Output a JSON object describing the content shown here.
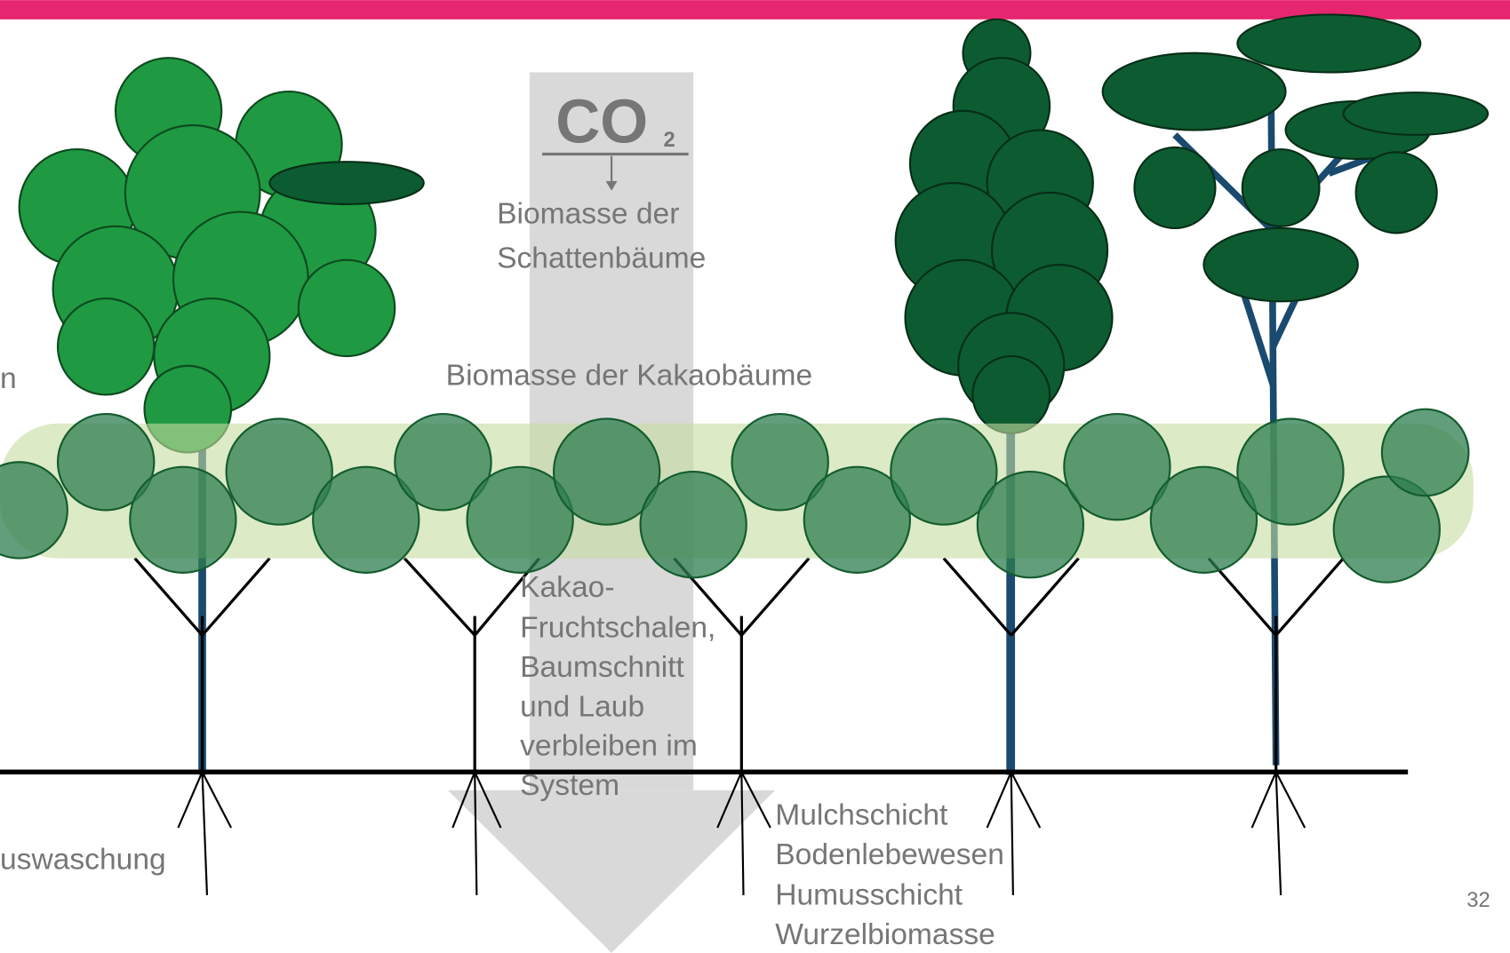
{
  "co2": {
    "main": "CO",
    "subscript": "2"
  },
  "shade_biomass": [
    "Biomasse der",
    "Schattenbäume"
  ],
  "cacao_biomass": "Biomasse der Kakaobäume",
  "residues": [
    "Kakao-",
    "Fruchtschalen,",
    "Baumschnitt",
    "und Laub",
    "verbleiben im",
    "System"
  ],
  "soil": [
    "Mulchschicht",
    "Bodenlebewesen",
    "Humusschicht",
    "Wurzelbiomasse"
  ],
  "left_cut": [
    "n",
    "uswaschung"
  ],
  "page_number": "32"
}
